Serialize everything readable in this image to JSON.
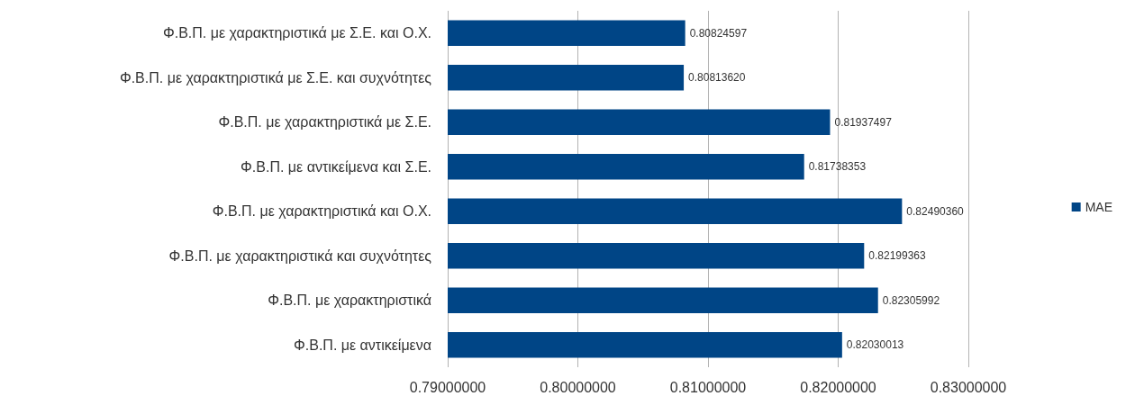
{
  "chart_data": {
    "type": "bar",
    "orientation": "horizontal",
    "categories": [
      "Φ.Β.Π. με χαρακτηριστικά με Σ.Ε. και Ο.Χ.",
      "Φ.Β.Π. με χαρακτηριστικά με Σ.Ε. και συχνότητες",
      "Φ.Β.Π. με χαρακτηριστικά με Σ.Ε.",
      "Φ.Β.Π. με αντικείμενα και Σ.Ε.",
      "Φ.Β.Π. με χαρακτηριστικά και Ο.Χ.",
      "Φ.Β.Π. με χαρακτηριστικά και συχνότητες",
      "Φ.Β.Π. με χαρακτηριστικά",
      "Φ.Β.Π. με αντικείμενα"
    ],
    "series": [
      {
        "name": "MAE",
        "color": "#004586",
        "values": [
          0.80824597,
          0.8081362,
          0.81937497,
          0.81738353,
          0.8249036,
          0.82199363,
          0.82305992,
          0.82030013
        ],
        "value_labels": [
          "0.80824597",
          "0.80813620",
          "0.81937497",
          "0.81738353",
          "0.82490360",
          "0.82199363",
          "0.82305992",
          "0.82030013"
        ]
      }
    ],
    "xlim": [
      0.79,
      0.83
    ],
    "xticks": [
      {
        "value": 0.79,
        "label": "0.79000000"
      },
      {
        "value": 0.8,
        "label": "0.80000000"
      },
      {
        "value": 0.81,
        "label": "0.81000000"
      },
      {
        "value": 0.82,
        "label": "0.82000000"
      },
      {
        "value": 0.83,
        "label": "0.83000000"
      }
    ],
    "grid": "x",
    "legend": "right"
  }
}
